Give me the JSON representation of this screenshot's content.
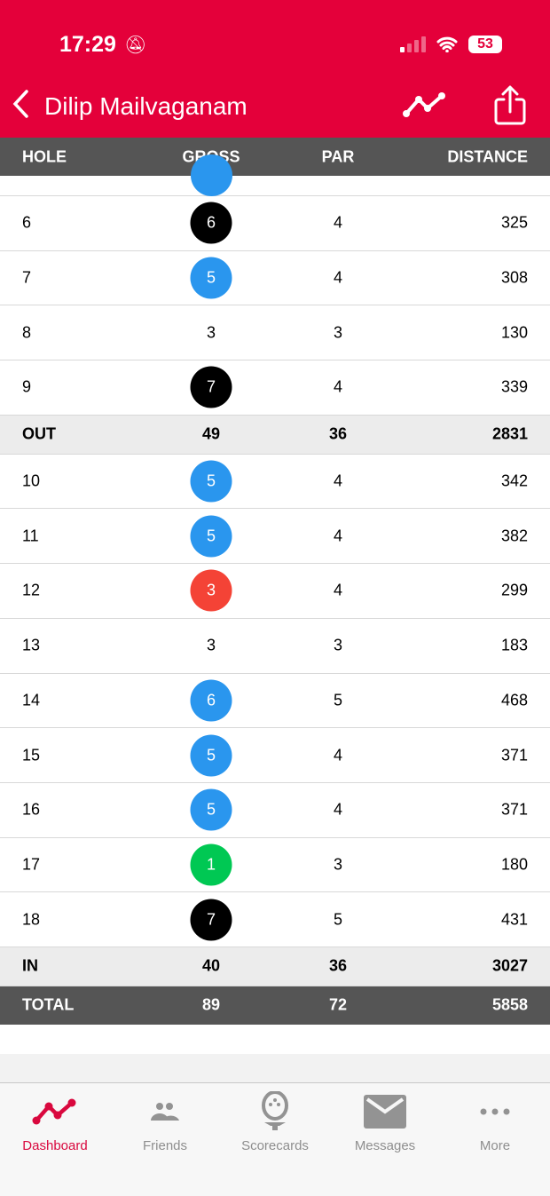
{
  "status": {
    "time": "17:29",
    "battery": "53"
  },
  "header": {
    "title": "Dilip Mailvaganam"
  },
  "columns": [
    "HOLE",
    "GROSS",
    "PAR",
    "DISTANCE"
  ],
  "colors": {
    "brand": "#e4003a",
    "bogey": "#2a96ee",
    "double_plus": "#000000",
    "birdie": "#f44336",
    "eagle": "#00c853"
  },
  "rows": [
    {
      "hole": "6",
      "gross": "6",
      "par": "4",
      "distance": "325",
      "marker": "double_plus"
    },
    {
      "hole": "7",
      "gross": "5",
      "par": "4",
      "distance": "308",
      "marker": "bogey"
    },
    {
      "hole": "8",
      "gross": "3",
      "par": "3",
      "distance": "130",
      "marker": ""
    },
    {
      "hole": "9",
      "gross": "7",
      "par": "4",
      "distance": "339",
      "marker": "double_plus"
    },
    {
      "hole": "OUT",
      "gross": "49",
      "par": "36",
      "distance": "2831",
      "type": "sum"
    },
    {
      "hole": "10",
      "gross": "5",
      "par": "4",
      "distance": "342",
      "marker": "bogey"
    },
    {
      "hole": "11",
      "gross": "5",
      "par": "4",
      "distance": "382",
      "marker": "bogey"
    },
    {
      "hole": "12",
      "gross": "3",
      "par": "4",
      "distance": "299",
      "marker": "birdie"
    },
    {
      "hole": "13",
      "gross": "3",
      "par": "3",
      "distance": "183",
      "marker": ""
    },
    {
      "hole": "14",
      "gross": "6",
      "par": "5",
      "distance": "468",
      "marker": "bogey"
    },
    {
      "hole": "15",
      "gross": "5",
      "par": "4",
      "distance": "371",
      "marker": "bogey"
    },
    {
      "hole": "16",
      "gross": "5",
      "par": "4",
      "distance": "371",
      "marker": "bogey"
    },
    {
      "hole": "17",
      "gross": "1",
      "par": "3",
      "distance": "180",
      "marker": "eagle"
    },
    {
      "hole": "18",
      "gross": "7",
      "par": "5",
      "distance": "431",
      "marker": "double_plus"
    },
    {
      "hole": "IN",
      "gross": "40",
      "par": "36",
      "distance": "3027",
      "type": "sum"
    },
    {
      "hole": "TOTAL",
      "gross": "89",
      "par": "72",
      "distance": "5858",
      "type": "total"
    }
  ],
  "tabs": [
    {
      "label": "Dashboard",
      "icon": "dashboard-icon"
    },
    {
      "label": "Friends",
      "icon": "friends-icon"
    },
    {
      "label": "Scorecards",
      "icon": "scorecards-icon"
    },
    {
      "label": "Messages",
      "icon": "messages-icon"
    },
    {
      "label": "More",
      "icon": "more-icon"
    }
  ]
}
